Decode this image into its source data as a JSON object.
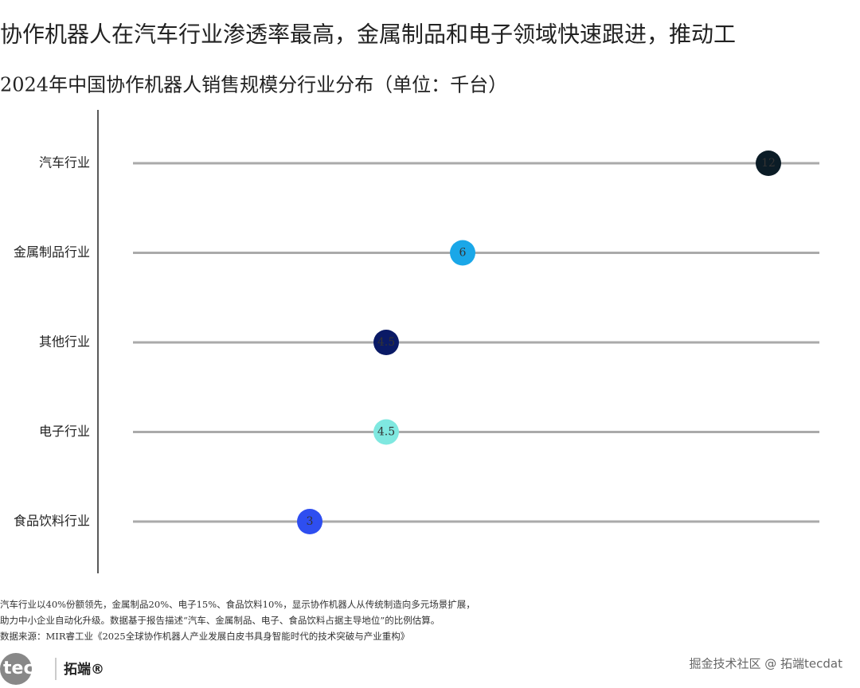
{
  "chart_data": {
    "type": "lollipop",
    "title": "协作机器人在汽车行业渗透率最高，金属制品和电子领域快速跟进，推动工",
    "subtitle": "2024年中国协作机器人销售规模分行业分布（单位：千台）",
    "categories": [
      "汽车行业",
      "金属制品行业",
      "其他行业",
      "电子行业",
      "食品饮料行业"
    ],
    "values": [
      12,
      6,
      4.5,
      4.5,
      3
    ],
    "colors": [
      "#0b1c26",
      "#1aa7e8",
      "#0a1a66",
      "#7fe8e0",
      "#2e4ef0"
    ],
    "track_color": "#aaaaaa",
    "xlim": [
      0,
      13
    ]
  },
  "footer": {
    "notes": [
      "汽车行业以40%份额领先，金属制品20%、电子15%、食品饮料10%，显示协作机器人从传统制造向多元场景扩展，",
      "助力中小企业自动化升级。数据基于报告描述“汽车、金属制品、电子、食品饮料占据主导地位”的比例估算。",
      "数据来源：MIR睿工业《2025全球协作机器人产业发展白皮书具身智能时代的技术突破与产业重构》"
    ],
    "logo": "tecdat",
    "brand": "拓端®",
    "watermark": "掘金技术社区 @ 拓端tecdat"
  }
}
